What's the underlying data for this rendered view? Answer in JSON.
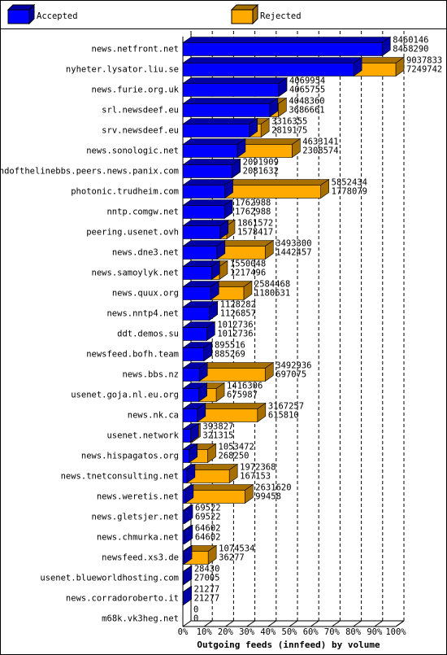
{
  "chart_data": {
    "type": "bar3d",
    "x_label": "Outgoing feeds (innfeed) by volume",
    "legend": [
      {
        "name": "Accepted",
        "color": "#0000ff"
      },
      {
        "name": "Rejected",
        "color": "#ffaa00"
      }
    ],
    "categories": [
      "news.netfront.net",
      "nyheter.lysator.liu.se",
      "news.furie.org.uk",
      "srl.newsdeef.eu",
      "srv.newsdeef.eu",
      "news.sonologic.net",
      "endofthelinebbs.peers.news.panix.com",
      "photonic.trudheim.com",
      "nntp.comgw.net",
      "peering.usenet.ovh",
      "news.dne3.net",
      "news.samoylyk.net",
      "news.quux.org",
      "news.nntp4.net",
      "ddt.demos.su",
      "newsfeed.bofh.team",
      "news.bbs.nz",
      "usenet.goja.nl.eu.org",
      "news.nk.ca",
      "usenet.network",
      "news.hispagatos.org",
      "news.tnetconsulting.net",
      "news.weretis.net",
      "news.gletsjer.net",
      "news.chmurka.net",
      "newsfeed.xs3.de",
      "usenet.blueworldhosting.com",
      "news.corradoroberto.it",
      "m68k.vk3heg.net"
    ],
    "offered": [
      8460146,
      9037833,
      4069954,
      4048360,
      3316355,
      4633141,
      2091909,
      5852434,
      1762988,
      1861572,
      3493300,
      1550048,
      2584468,
      1128282,
      1012736,
      895516,
      3492936,
      1416306,
      3167257,
      393827,
      1053472,
      1972368,
      2631620,
      69522,
      64602,
      1074534,
      28430,
      21277,
      0
    ],
    "accepted": [
      8458290,
      7249742,
      4065755,
      3686661,
      2819175,
      2308574,
      2081632,
      1778079,
      1762988,
      1578417,
      1442457,
      1217496,
      1180631,
      1126857,
      1012736,
      885269,
      697075,
      675987,
      615810,
      321315,
      268250,
      167153,
      99458,
      69522,
      64602,
      36277,
      27005,
      21277,
      0
    ],
    "xlim": [
      0,
      100
    ],
    "xticks": [
      {
        "value": 0,
        "label": "0%"
      },
      {
        "value": 10,
        "label": "10%"
      },
      {
        "value": 20,
        "label": "20%"
      },
      {
        "value": 30,
        "label": "30%"
      },
      {
        "value": 40,
        "label": "40%"
      },
      {
        "value": 50,
        "label": "50%"
      },
      {
        "value": 60,
        "label": "60%"
      },
      {
        "value": 70,
        "label": "70%"
      },
      {
        "value": 80,
        "label": "80%"
      },
      {
        "value": 90,
        "label": "90%"
      },
      {
        "value": 100,
        "label": "100%"
      }
    ],
    "grid": true
  }
}
